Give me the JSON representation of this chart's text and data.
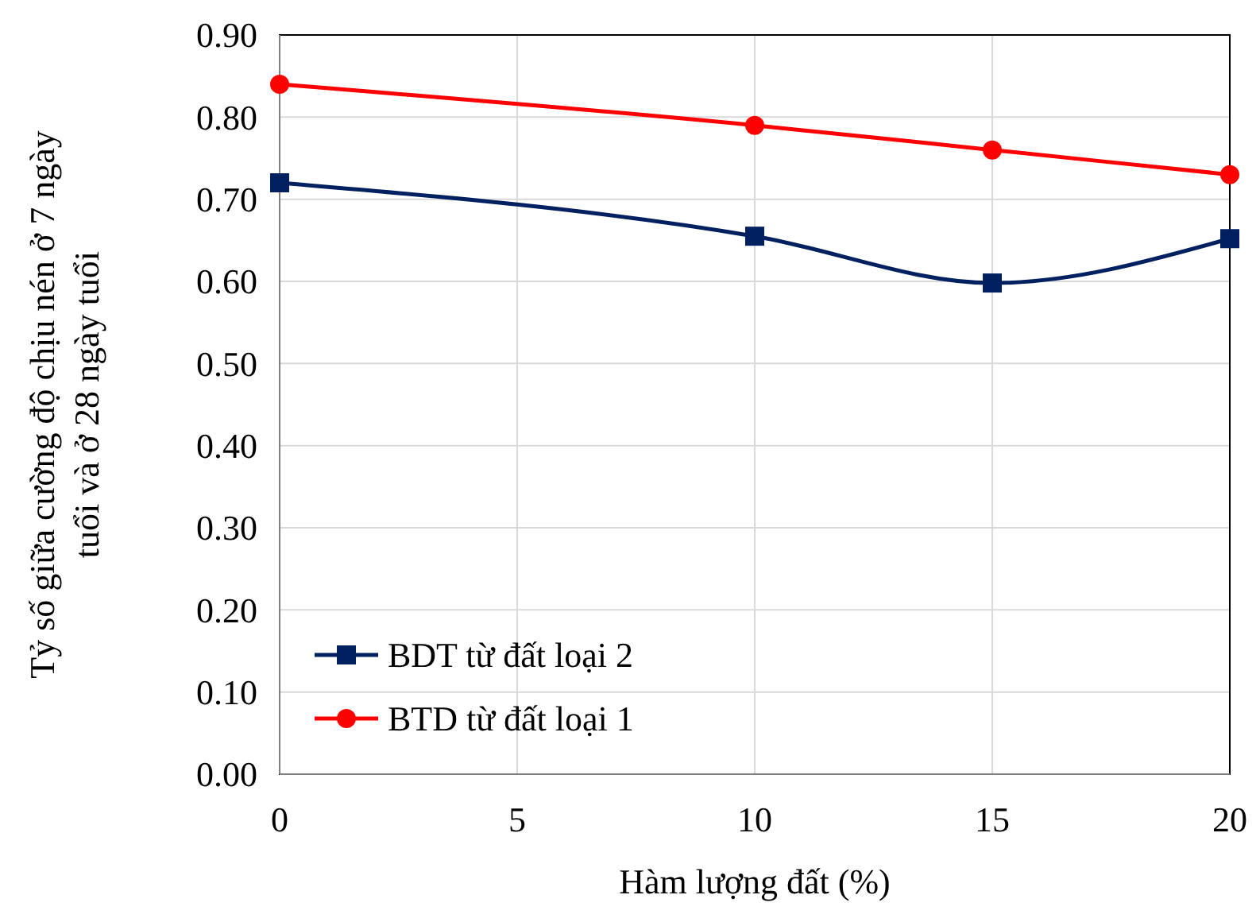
{
  "chart_data": {
    "type": "line",
    "xlabel": "Hàm lượng đất (%)",
    "ylabel": "Tỷ số giữa cường độ chịu nén ở 7 ngày\ntuổi và ở 28 ngày tuổi",
    "x": [
      0,
      10,
      15,
      20
    ],
    "xlim": [
      0,
      20
    ],
    "xticks": [
      0,
      5,
      10,
      15,
      20
    ],
    "ylim": [
      0,
      0.9
    ],
    "yticks": [
      {
        "value": 0,
        "label": "0.00"
      },
      {
        "value": 0.1,
        "label": "0.10"
      },
      {
        "value": 0.2,
        "label": "0.20"
      },
      {
        "value": 0.3,
        "label": "0.30"
      },
      {
        "value": 0.4,
        "label": "0.40"
      },
      {
        "value": 0.5,
        "label": "0.50"
      },
      {
        "value": 0.6,
        "label": "0.60"
      },
      {
        "value": 0.7,
        "label": "0.70"
      },
      {
        "value": 0.8,
        "label": "0.80"
      },
      {
        "value": 0.9,
        "label": "0.90"
      }
    ],
    "grid": true,
    "legend": "bottom left",
    "line_style": "solid",
    "series": [
      {
        "name": "BDT từ đất loại 2",
        "color": "#002060",
        "marker": "square",
        "values": [
          0.72,
          0.655,
          0.598,
          0.652
        ]
      },
      {
        "name": "BTD từ đất loại 1",
        "color": "#ff0000",
        "marker": "circle",
        "values": [
          0.84,
          0.79,
          0.76,
          0.73
        ]
      }
    ]
  }
}
